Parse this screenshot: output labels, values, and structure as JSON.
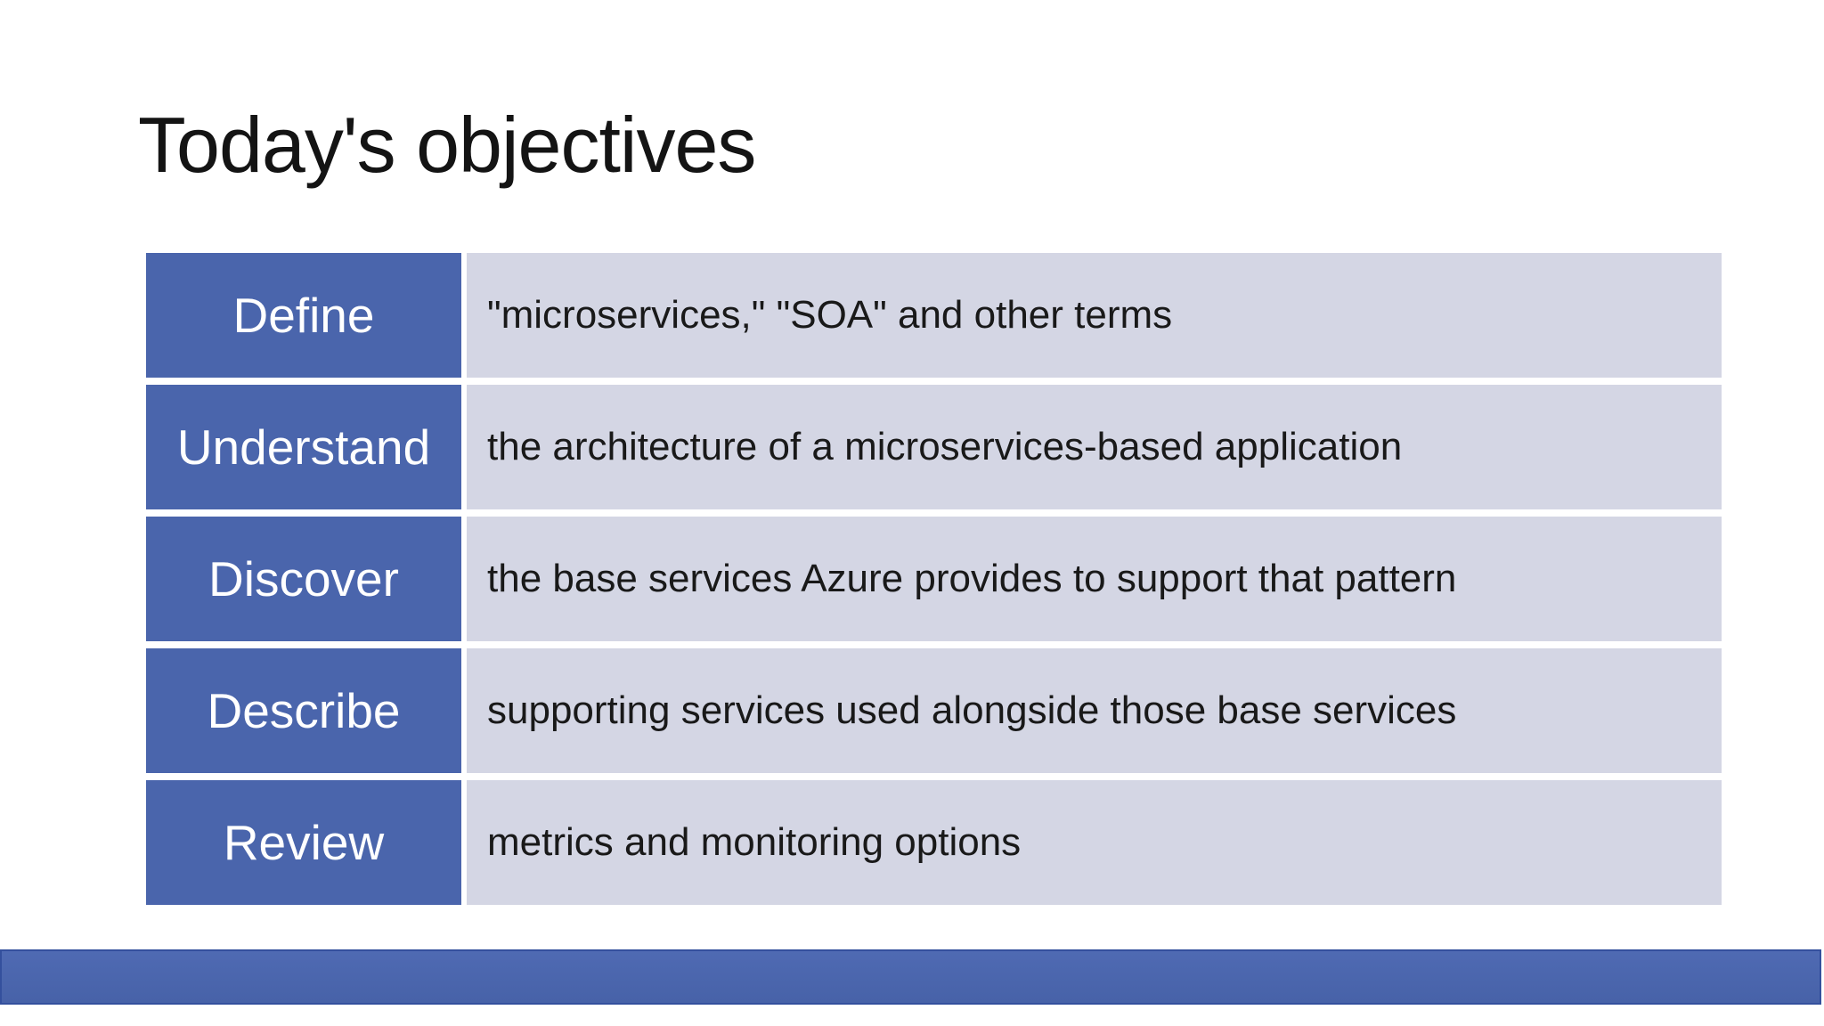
{
  "slide": {
    "title": "Today's objectives",
    "objectives": [
      {
        "label": "Define",
        "description": "\"microservices,\" \"SOA\" and other terms"
      },
      {
        "label": "Understand",
        "description": "the architecture of a microservices-based application"
      },
      {
        "label": "Discover",
        "description": "the base services Azure provides to support that pattern"
      },
      {
        "label": "Describe",
        "description": "supporting services used alongside those base services"
      },
      {
        "label": "Review",
        "description": "metrics and monitoring options"
      }
    ],
    "colors": {
      "title_text": "#141414",
      "label_bg": "#4a65ac",
      "label_text": "#ffffff",
      "desc_bg": "#d4d6e4",
      "desc_text": "#191919",
      "bar_fill_light": "#4f6ab3",
      "bar_fill_dark": "#4762a8",
      "bar_border": "#34509d"
    }
  }
}
